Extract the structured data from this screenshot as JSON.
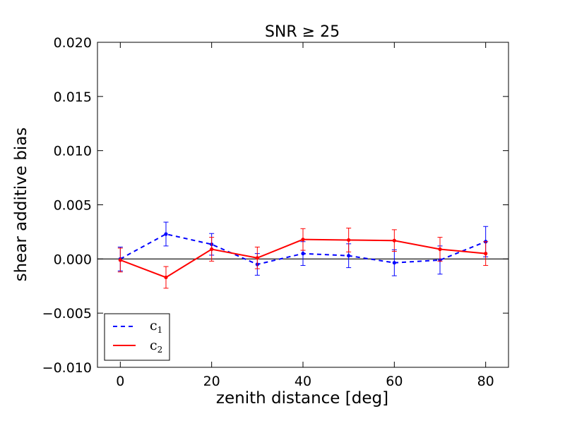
{
  "chart_data": {
    "type": "line",
    "title": "SNR ≥ 25",
    "xlabel": "zenith distance [deg]",
    "ylabel": "shear additive bias",
    "xlim": [
      -5,
      85
    ],
    "ylim": [
      -0.01,
      0.02
    ],
    "xticks": [
      0,
      20,
      40,
      60,
      80
    ],
    "xtick_labels": [
      "0",
      "20",
      "40",
      "60",
      "80"
    ],
    "yticks": [
      -0.01,
      -0.005,
      0,
      0.005,
      0.01,
      0.015,
      0.02
    ],
    "ytick_labels": [
      "−0.010",
      "−0.005",
      "0.000",
      "0.005",
      "0.010",
      "0.015",
      "0.020"
    ],
    "reference_line_y": 0,
    "legend_position": "lower-left",
    "series": [
      {
        "name": "c1",
        "label_main": "c",
        "label_sub": "1",
        "color": "#0000ff",
        "style": "dashed",
        "x": [
          0,
          10,
          20,
          30,
          40,
          50,
          60,
          70,
          80
        ],
        "y": [
          0.0,
          0.0023,
          0.00135,
          -0.0005,
          0.0005,
          0.0003,
          -0.00035,
          -0.0001,
          0.0016
        ],
        "err": [
          0.0011,
          0.0011,
          0.001,
          0.001,
          0.0011,
          0.0011,
          0.0012,
          0.0013,
          0.0014
        ]
      },
      {
        "name": "c2",
        "label_main": "c",
        "label_sub": "2",
        "color": "#ff0000",
        "style": "solid",
        "x": [
          0,
          10,
          20,
          30,
          40,
          50,
          60,
          70,
          80
        ],
        "y": [
          -0.0001,
          -0.0017,
          0.0009,
          0.0001,
          0.0018,
          0.00175,
          0.0017,
          0.0009,
          0.0005
        ],
        "err": [
          0.0011,
          0.001,
          0.0011,
          0.001,
          0.001,
          0.0011,
          0.001,
          0.0011,
          0.0011
        ]
      }
    ]
  }
}
